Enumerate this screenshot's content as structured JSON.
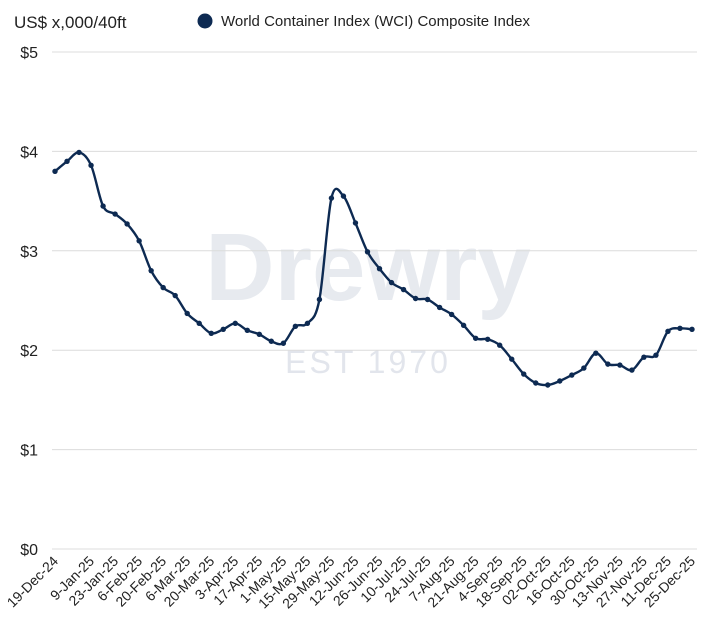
{
  "chart_data": {
    "type": "line",
    "title": "",
    "ylabel": "US$ x,000/40ft",
    "xlabel": "",
    "ylim": [
      0,
      5
    ],
    "yticks": [
      {
        "value": 0,
        "label": "$0"
      },
      {
        "value": 1,
        "label": "$1"
      },
      {
        "value": 2,
        "label": "$2"
      },
      {
        "value": 3,
        "label": "$3"
      },
      {
        "value": 4,
        "label": "$4"
      },
      {
        "value": 5,
        "label": "$5"
      }
    ],
    "grid": true,
    "legend": "top",
    "watermark": {
      "brand": "Drewry",
      "est": "EST 1970"
    },
    "series": [
      {
        "name": "World Container Index (WCI) Composite Index",
        "color": "#0d2a52",
        "x": [
          "19-Dec-24",
          "26-Dec-24",
          "2-Jan-25",
          "9-Jan-25",
          "16-Jan-25",
          "23-Jan-25",
          "30-Jan-25",
          "6-Feb-25",
          "13-Feb-25",
          "20-Feb-25",
          "27-Feb-25",
          "6-Mar-25",
          "13-Mar-25",
          "20-Mar-25",
          "27-Mar-25",
          "3-Apr-25",
          "10-Apr-25",
          "17-Apr-25",
          "24-Apr-25",
          "1-May-25",
          "8-May-25",
          "15-May-25",
          "22-May-25",
          "29-May-25",
          "5-Jun-25",
          "12-Jun-25",
          "19-Jun-25",
          "26-Jun-25",
          "3-Jul-25",
          "10-Jul-25",
          "17-Jul-25",
          "24-Jul-25",
          "31-Jul-25",
          "7-Aug-25",
          "14-Aug-25",
          "21-Aug-25",
          "28-Aug-25",
          "4-Sep-25",
          "11-Sep-25",
          "18-Sep-25",
          "25-Sep-25",
          "02-Oct-25",
          "09-Oct-25",
          "16-Oct-25",
          "23-Oct-25",
          "30-Oct-25",
          "06-Nov-25",
          "13-Nov-25",
          "20-Nov-25",
          "27-Nov-25",
          "04-Dec-25",
          "11-Dec-25",
          "18-Dec-25",
          "25-Dec-25"
        ],
        "values": [
          3.8,
          3.9,
          3.99,
          3.86,
          3.45,
          3.37,
          3.27,
          3.1,
          2.8,
          2.63,
          2.55,
          2.37,
          2.27,
          2.17,
          2.21,
          2.27,
          2.2,
          2.16,
          2.09,
          2.07,
          2.24,
          2.27,
          2.51,
          3.53,
          3.55,
          3.28,
          2.99,
          2.82,
          2.68,
          2.61,
          2.52,
          2.51,
          2.43,
          2.36,
          2.25,
          2.12,
          2.11,
          2.05,
          1.91,
          1.76,
          1.67,
          1.65,
          1.69,
          1.75,
          1.82,
          1.97,
          1.86,
          1.85,
          1.8,
          1.93,
          1.95,
          2.19,
          2.22,
          2.21
        ]
      }
    ],
    "xticks": [
      "19-Dec-24",
      "9-Jan-25",
      "23-Jan-25",
      "6-Feb-25",
      "20-Feb-25",
      "6-Mar-25",
      "20-Mar-25",
      "3-Apr-25",
      "17-Apr-25",
      "1-May-25",
      "15-May-25",
      "29-May-25",
      "12-Jun-25",
      "26-Jun-25",
      "10-Jul-25",
      "24-Jul-25",
      "7-Aug-25",
      "21-Aug-25",
      "4-Sep-25",
      "18-Sep-25",
      "02-Oct-25",
      "16-Oct-25",
      "30-Oct-25",
      "13-Nov-25",
      "27-Nov-25",
      "11-Dec-25",
      "25-Dec-25"
    ]
  }
}
